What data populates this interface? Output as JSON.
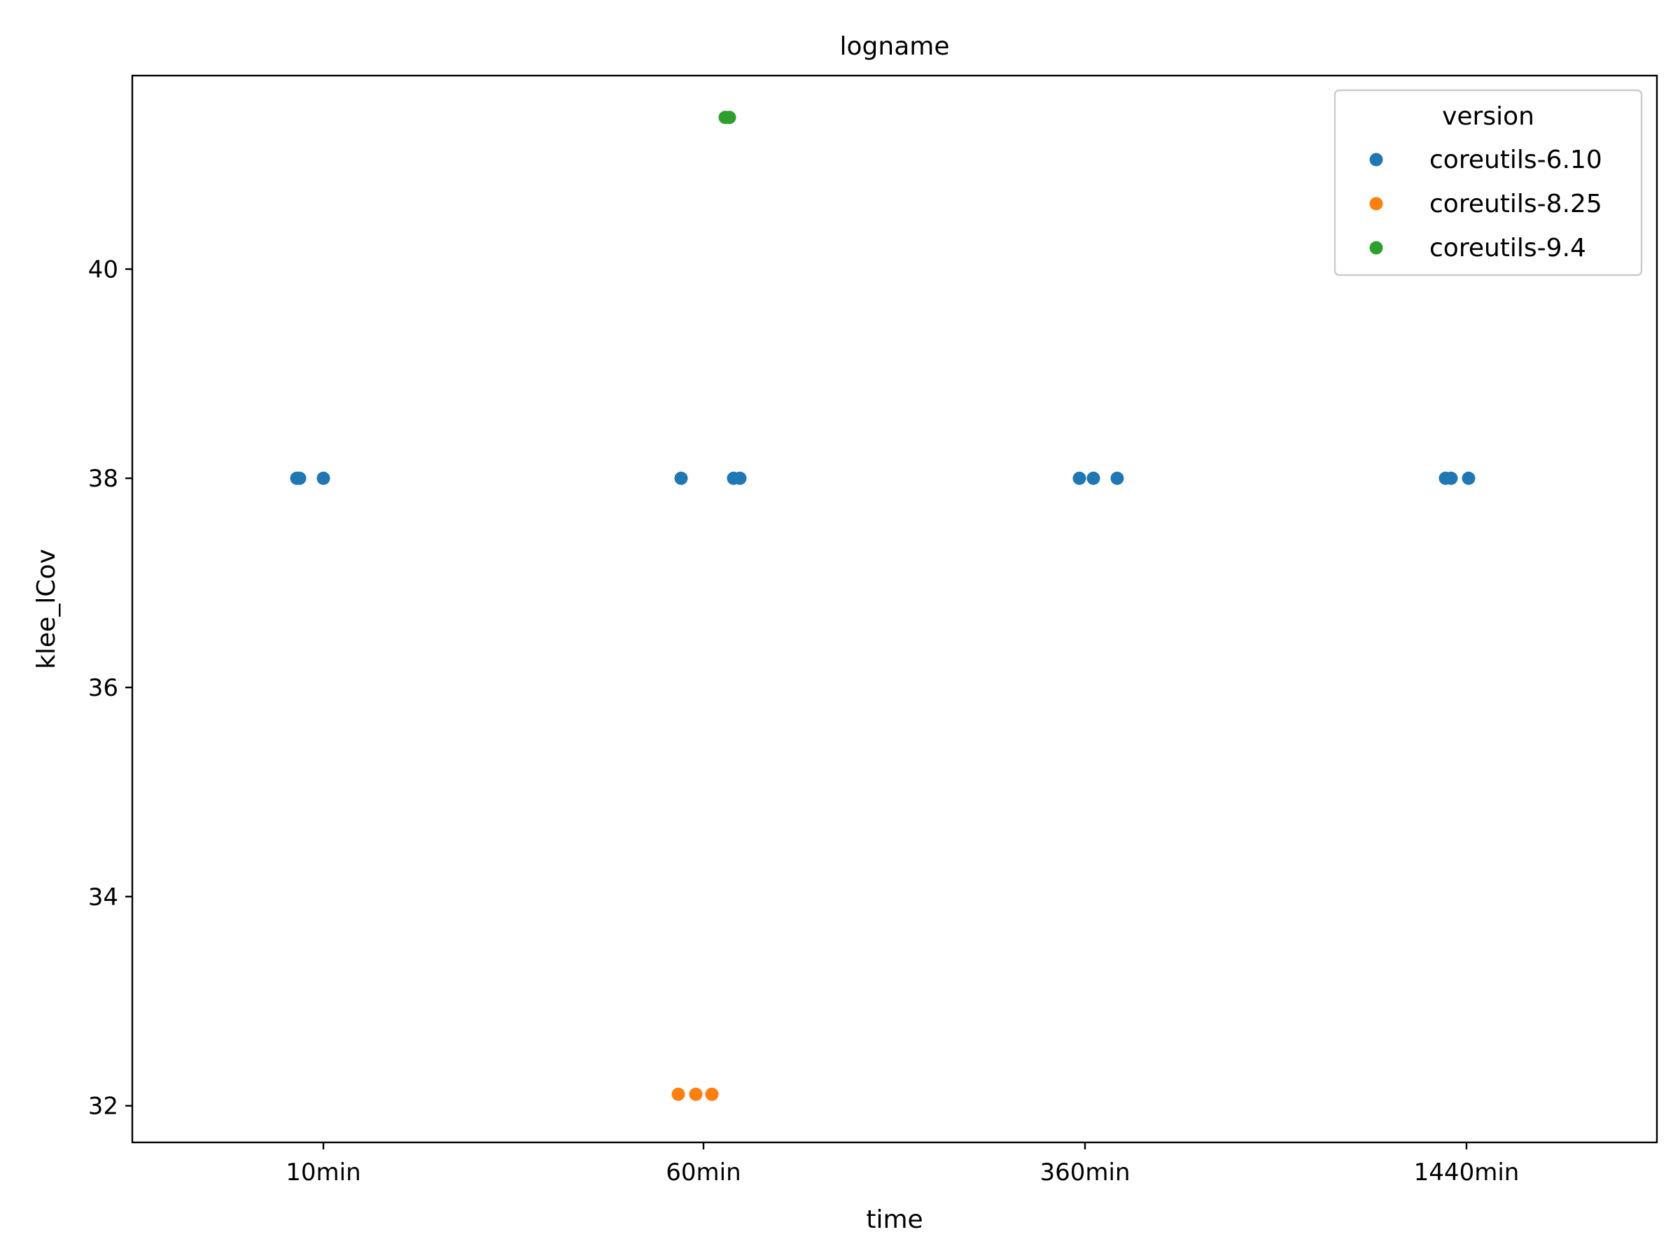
{
  "chart_data": {
    "type": "scatter",
    "title": "logname",
    "xlabel": "time",
    "ylabel": "klee_lCov",
    "categories": [
      "10min",
      "60min",
      "360min",
      "1440min"
    ],
    "ylim": [
      31.65,
      41.85
    ],
    "yticks": [
      32,
      34,
      36,
      38,
      40
    ],
    "grid": false,
    "legend": {
      "title": "version",
      "placement": "top-right"
    },
    "series": [
      {
        "name": "coreutils-6.10",
        "color": "#1f77b4",
        "points": [
          {
            "x": "10min",
            "y": 38.0
          },
          {
            "x": "10min",
            "y": 38.0
          },
          {
            "x": "10min",
            "y": 38.0
          },
          {
            "x": "60min",
            "y": 38.0
          },
          {
            "x": "60min",
            "y": 38.0
          },
          {
            "x": "60min",
            "y": 38.0
          },
          {
            "x": "360min",
            "y": 38.0
          },
          {
            "x": "360min",
            "y": 38.0
          },
          {
            "x": "360min",
            "y": 38.0
          },
          {
            "x": "1440min",
            "y": 38.0
          },
          {
            "x": "1440min",
            "y": 38.0
          },
          {
            "x": "1440min",
            "y": 38.0
          }
        ]
      },
      {
        "name": "coreutils-8.25",
        "color": "#ff7f0e",
        "points": [
          {
            "x": "60min",
            "y": 32.11
          },
          {
            "x": "60min",
            "y": 32.11
          },
          {
            "x": "60min",
            "y": 32.11
          }
        ]
      },
      {
        "name": "coreutils-9.4",
        "color": "#2ca02c",
        "points": [
          {
            "x": "60min",
            "y": 41.45
          },
          {
            "x": "60min",
            "y": 41.45
          }
        ]
      }
    ]
  }
}
